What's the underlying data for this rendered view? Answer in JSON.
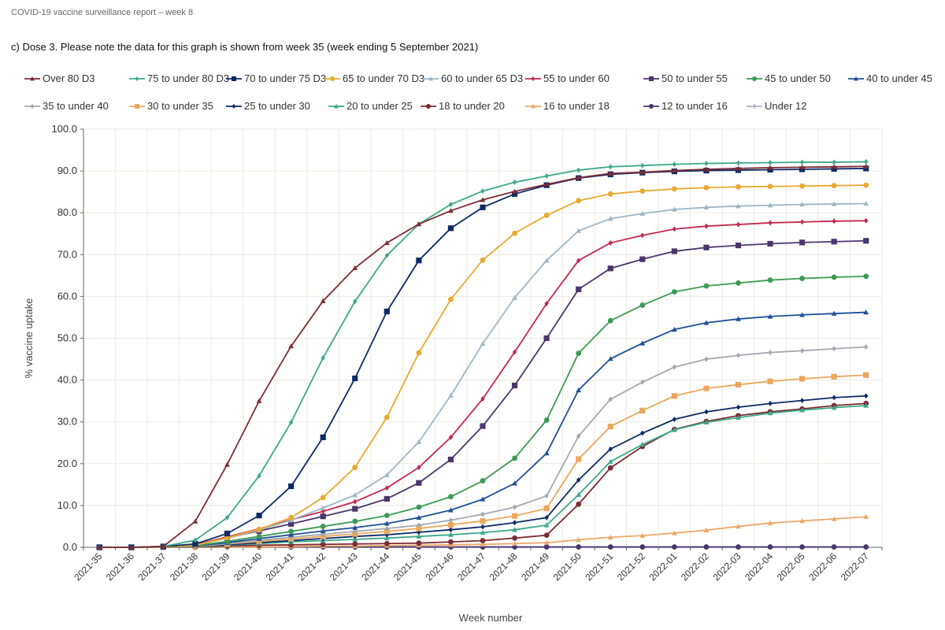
{
  "header": {
    "title": "COVID-19 vaccine surveillance report – week 8",
    "subtitle": "c) Dose 3. Please note the data for this graph is shown from week 35 (week ending 5 September 2021)"
  },
  "chart_data": {
    "type": "line",
    "title": "c) Dose 3. Please note the data for this graph is shown from week 35 (week ending 5 September 2021)",
    "xlabel": "Week number",
    "ylabel": "% vaccine uptake",
    "ylim": [
      0,
      100
    ],
    "yticks": [
      "0.0",
      "10.0",
      "20.0",
      "30.0",
      "40.0",
      "50.0",
      "60.0",
      "70.0",
      "80.0",
      "90.0",
      "100.0"
    ],
    "grid": true,
    "legend_position": "top",
    "categories": [
      "2021-35",
      "2021-36",
      "2021-37",
      "2021-38",
      "2021-39",
      "2021-40",
      "2021-41",
      "2021-42",
      "2021-43",
      "2021-44",
      "2021-45",
      "2021-46",
      "2021-47",
      "2021-48",
      "2021-49",
      "2021-50",
      "2021-51",
      "2021-52",
      "2022-01",
      "2022-02",
      "2022-03",
      "2022-04",
      "2022-05",
      "2022-06",
      "2022-07"
    ],
    "series": [
      {
        "name": "Over 80 D3",
        "color": "#7b2c34",
        "marker": "triangle",
        "values": [
          0,
          0,
          0.2,
          6.2,
          19.8,
          35.0,
          48.1,
          58.9,
          66.8,
          72.8,
          77.3,
          80.5,
          83.1,
          85.1,
          86.8,
          88.4,
          89.4,
          89.7,
          90.1,
          90.4,
          90.6,
          90.8,
          90.9,
          91.0,
          91.1
        ]
      },
      {
        "name": "75 to under 80 D3",
        "color": "#3fa88a",
        "marker": "diamond",
        "values": [
          0,
          0,
          0.2,
          1.7,
          7.1,
          17.1,
          29.9,
          45.3,
          58.8,
          69.8,
          77.3,
          82.0,
          85.2,
          87.3,
          88.8,
          90.2,
          91.0,
          91.3,
          91.6,
          91.8,
          91.9,
          92.0,
          92.1,
          92.1,
          92.2
        ]
      },
      {
        "name": "70 to under 75 D3",
        "color": "#0d2a66",
        "marker": "square",
        "values": [
          0,
          0,
          0.2,
          0.8,
          3.3,
          7.6,
          14.6,
          26.3,
          40.4,
          56.4,
          68.6,
          76.3,
          81.3,
          84.5,
          86.6,
          88.3,
          89.2,
          89.6,
          89.9,
          90.1,
          90.2,
          90.3,
          90.4,
          90.5,
          90.6
        ]
      },
      {
        "name": "65 to under 70 D3",
        "color": "#e8a92e",
        "marker": "circle",
        "values": [
          0,
          0,
          0.1,
          0.5,
          2.3,
          4.3,
          7.1,
          11.9,
          19.1,
          31.1,
          46.5,
          59.3,
          68.7,
          75.1,
          79.4,
          82.9,
          84.5,
          85.2,
          85.7,
          86.0,
          86.2,
          86.3,
          86.4,
          86.5,
          86.6
        ]
      },
      {
        "name": "60 to under 65 D3",
        "color": "#9fb6c6",
        "marker": "triangle",
        "values": [
          0,
          0,
          0.1,
          0.5,
          2.2,
          4.1,
          6.5,
          9.4,
          12.5,
          17.3,
          25.2,
          36.3,
          48.7,
          59.7,
          68.6,
          75.7,
          78.6,
          79.8,
          80.8,
          81.3,
          81.6,
          81.8,
          82.0,
          82.1,
          82.2
        ]
      },
      {
        "name": "55 to under 60",
        "color": "#c2294f",
        "marker": "diamond",
        "values": [
          0,
          0,
          0.1,
          0.6,
          2.5,
          4.4,
          6.6,
          8.6,
          10.9,
          14.2,
          19.1,
          26.3,
          35.5,
          46.7,
          58.3,
          68.6,
          72.8,
          74.6,
          76.1,
          76.8,
          77.2,
          77.6,
          77.8,
          78.0,
          78.1
        ]
      },
      {
        "name": "50 to under 55",
        "color": "#4a356e",
        "marker": "square",
        "values": [
          0,
          0,
          0.1,
          0.6,
          2.3,
          3.9,
          5.6,
          7.4,
          9.2,
          11.6,
          15.4,
          21.0,
          29.0,
          38.7,
          50.0,
          61.7,
          66.7,
          68.9,
          70.8,
          71.7,
          72.2,
          72.6,
          72.9,
          73.1,
          73.3
        ]
      },
      {
        "name": "45 to under 50",
        "color": "#3d9a55",
        "marker": "circle",
        "values": [
          0,
          0,
          0.1,
          0.4,
          1.4,
          2.6,
          3.8,
          5.0,
          6.2,
          7.6,
          9.6,
          12.1,
          15.9,
          21.3,
          30.4,
          46.4,
          54.2,
          57.9,
          61.1,
          62.5,
          63.2,
          63.9,
          64.3,
          64.6,
          64.8
        ]
      },
      {
        "name": "40 to under 45",
        "color": "#1f4f96",
        "marker": "triangle",
        "values": [
          0,
          0,
          0.1,
          0.3,
          1.1,
          2.1,
          3.0,
          3.9,
          4.7,
          5.7,
          7.1,
          8.9,
          11.5,
          15.3,
          22.5,
          37.6,
          45.1,
          48.8,
          52.1,
          53.7,
          54.6,
          55.2,
          55.6,
          55.9,
          56.2
        ]
      },
      {
        "name": "35 to under 40",
        "color": "#a3a8b0",
        "marker": "diamond",
        "values": [
          0,
          0,
          0.1,
          0.3,
          0.9,
          1.7,
          2.4,
          3.1,
          3.8,
          4.5,
          5.3,
          6.5,
          7.9,
          9.6,
          12.3,
          26.6,
          35.4,
          39.5,
          43.1,
          45.0,
          45.9,
          46.6,
          47.0,
          47.5,
          47.9
        ]
      },
      {
        "name": "30 to under 35",
        "color": "#e9a85e",
        "marker": "square",
        "values": [
          0,
          0,
          0.1,
          0.2,
          0.8,
          1.4,
          2.0,
          2.6,
          3.2,
          3.8,
          4.5,
          5.4,
          6.3,
          7.5,
          9.3,
          21.1,
          28.9,
          32.7,
          36.2,
          38.0,
          38.9,
          39.7,
          40.3,
          40.8,
          41.2
        ]
      },
      {
        "name": "25 to under 30",
        "color": "#0d2a66",
        "marker": "diamond",
        "values": [
          0,
          0,
          0.1,
          0.2,
          0.6,
          1.1,
          1.6,
          2.1,
          2.6,
          3.0,
          3.6,
          4.2,
          4.9,
          5.9,
          7.1,
          16.1,
          23.5,
          27.3,
          30.6,
          32.4,
          33.5,
          34.4,
          35.1,
          35.8,
          36.2
        ]
      },
      {
        "name": "20 to under 25",
        "color": "#3fa88a",
        "marker": "triangle",
        "values": [
          0,
          0,
          0.1,
          0.1,
          0.5,
          0.9,
          1.3,
          1.6,
          1.9,
          2.2,
          2.6,
          3.0,
          3.5,
          4.2,
          5.3,
          12.6,
          20.5,
          24.6,
          28.1,
          29.9,
          31.0,
          32.1,
          32.8,
          33.4,
          33.9
        ]
      },
      {
        "name": "18 to under 20",
        "color": "#7b2c34",
        "marker": "circle",
        "values": [
          0,
          0,
          0.1,
          0.1,
          0.3,
          0.5,
          0.6,
          0.7,
          0.8,
          0.9,
          1.0,
          1.3,
          1.6,
          2.2,
          2.9,
          10.3,
          19.0,
          24.1,
          28.2,
          30.1,
          31.5,
          32.4,
          33.1,
          33.9,
          34.4
        ]
      },
      {
        "name": "16 to under 18",
        "color": "#eaa86a",
        "marker": "triangle",
        "values": [
          0,
          0,
          0,
          0,
          0.1,
          0.1,
          0.2,
          0.3,
          0.3,
          0.4,
          0.5,
          0.6,
          0.7,
          0.9,
          1.1,
          1.8,
          2.4,
          2.8,
          3.4,
          4.1,
          5.0,
          5.8,
          6.3,
          6.8,
          7.3
        ]
      },
      {
        "name": "12 to under 16",
        "color": "#4a356e",
        "marker": "circle",
        "values": [
          0,
          0,
          0,
          0,
          0.1,
          0.1,
          0.1,
          0.1,
          0.1,
          0.1,
          0.1,
          0.1,
          0.1,
          0.1,
          0.1,
          0.1,
          0.1,
          0.1,
          0.1,
          0.1,
          0.1,
          0.1,
          0.1,
          0.1,
          0.1
        ]
      },
      {
        "name": "Under 12",
        "color": "#a9b3c4",
        "marker": "cross",
        "values": [
          0,
          0,
          0,
          0,
          0,
          0,
          0,
          0,
          0,
          0,
          0,
          0,
          0,
          0,
          0,
          0,
          0,
          0,
          0,
          0,
          0,
          0,
          0,
          0,
          0
        ]
      }
    ]
  }
}
